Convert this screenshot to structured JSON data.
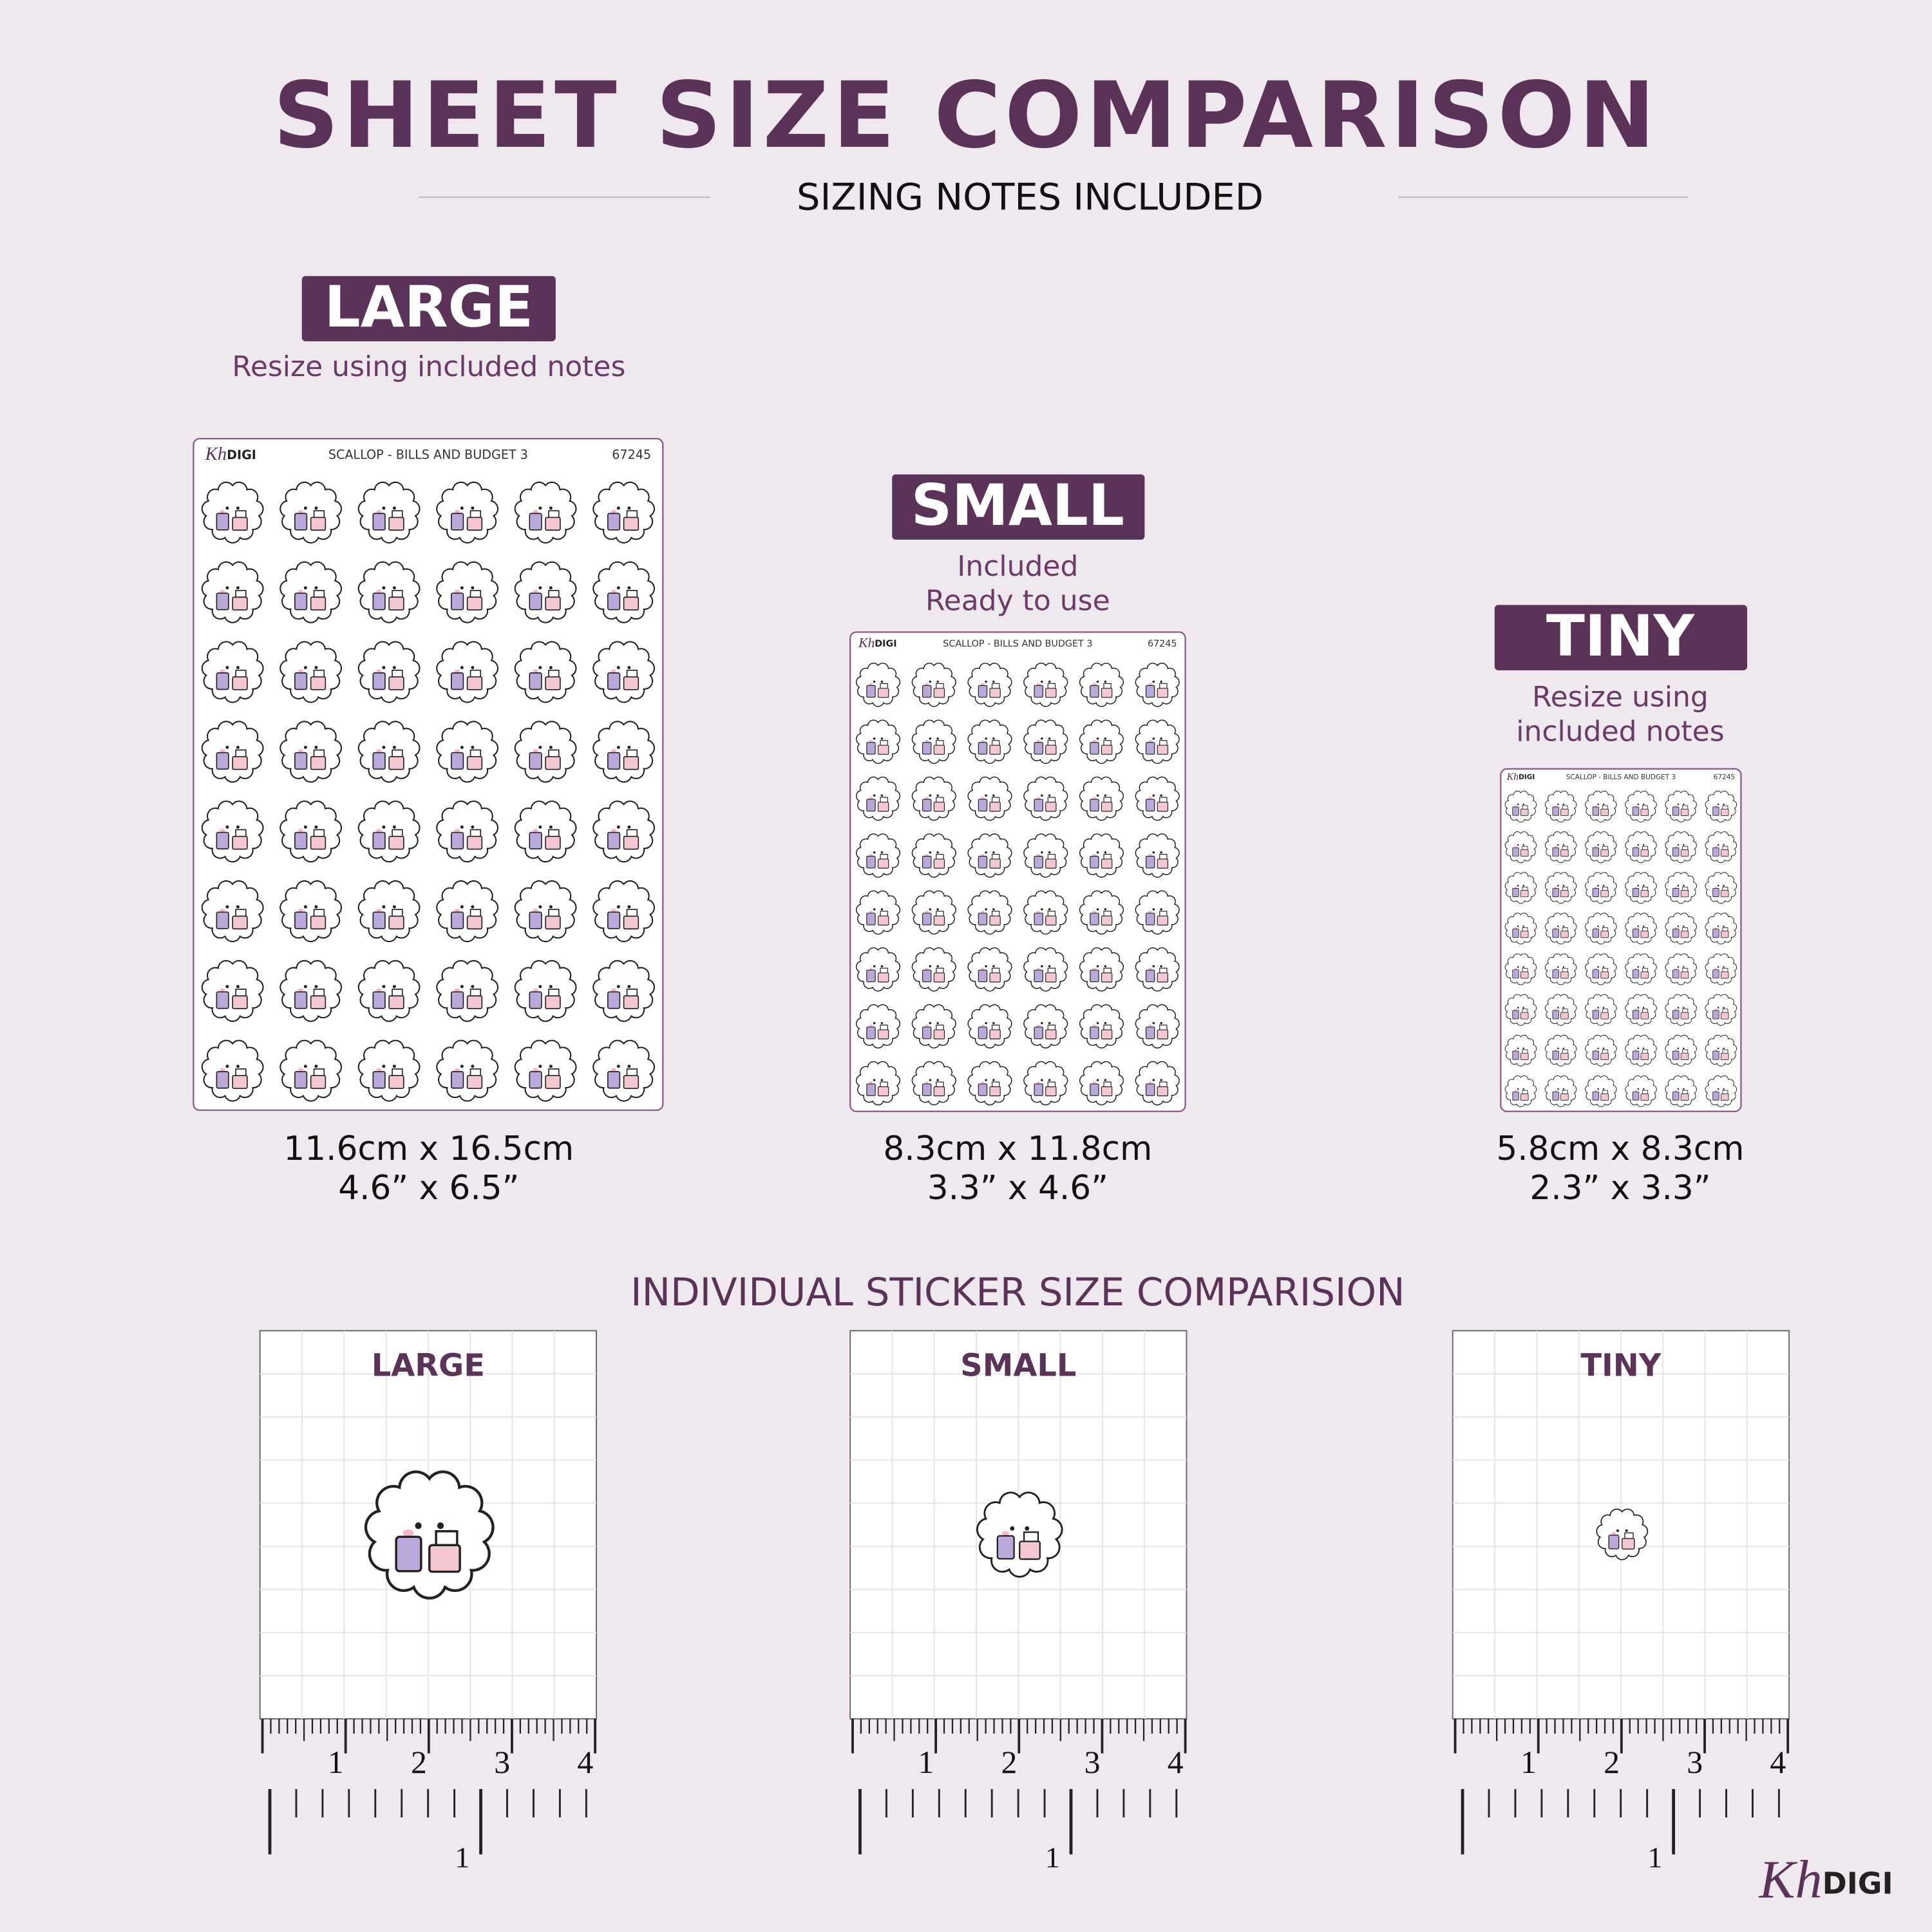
{
  "header": {
    "title": "SHEET SIZE COMPARISON",
    "subtitle": "SIZING NOTES INCLUDED"
  },
  "sheets": [
    {
      "label": "LARGE",
      "notes": [
        "Resize using included notes"
      ],
      "brand": "Kh",
      "brand_suffix": "DIGI",
      "sheet_title": "SCALLOP - BILLS AND BUDGET 3",
      "code": "67245",
      "size_cm": "11.6cm x 16.5cm",
      "size_in": "4.6” x 6.5”"
    },
    {
      "label": "SMALL",
      "notes": [
        "Included",
        "Ready to use"
      ],
      "brand": "Kh",
      "brand_suffix": "DIGI",
      "sheet_title": "SCALLOP - BILLS AND BUDGET 3",
      "code": "67245",
      "size_cm": "8.3cm x 11.8cm",
      "size_in": "3.3” x 4.6”"
    },
    {
      "label": "TINY",
      "notes": [
        "Resize using",
        "included notes"
      ],
      "brand": "Kh",
      "brand_suffix": "DIGI",
      "sheet_title": "SCALLOP - BILLS AND BUDGET 3",
      "code": "67245",
      "size_cm": "5.8cm x 8.3cm",
      "size_in": "2.3” x 3.3”"
    }
  ],
  "section_title": "INDIVIDUAL STICKER SIZE COMPARISION",
  "panels": [
    {
      "label": "LARGE"
    },
    {
      "label": "SMALL"
    },
    {
      "label": "TINY"
    }
  ],
  "ruler": {
    "cm_labels": [
      "1",
      "2",
      "3",
      "4"
    ],
    "inch_label": "1"
  },
  "footer": {
    "brand": "Kh",
    "brand_suffix": "DIGI"
  }
}
